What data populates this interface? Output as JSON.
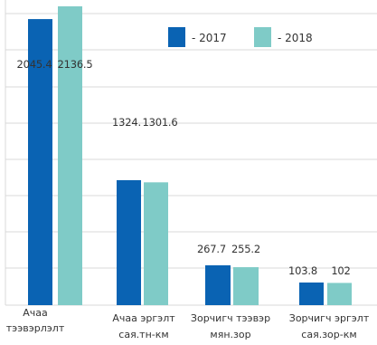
{
  "chart_data": {
    "type": "bar",
    "categories": [
      [
        "Ачаа",
        "тээвэрлэлт"
      ],
      [
        "Ачаа эргэлт",
        "сая.тн-км"
      ],
      [
        "Зорчигч тээвэр",
        "мян.зор"
      ],
      [
        "Зорчигч эргэлт",
        "сая.зор-км"
      ]
    ],
    "series": [
      {
        "name": "- 2017",
        "values": [
          2045.4,
          1324.0,
          267.7,
          103.8
        ],
        "labels": [
          "2045.4",
          "1324.",
          "267.7",
          "103.8"
        ],
        "color": "#0a63b3"
      },
      {
        "name": "- 2018",
        "values": [
          2136.5,
          1301.6,
          255.2,
          102.0
        ],
        "labels": [
          "2136.5",
          "1301.6",
          "255.2",
          "102"
        ],
        "color": "#7fcbc7"
      }
    ],
    "scale_note": "values are drawn on independent per-group scales as in the original; bar heights do not share one axis",
    "grid": true,
    "legend_position": "top-right",
    "gridline_color": "#d9d9d9"
  }
}
